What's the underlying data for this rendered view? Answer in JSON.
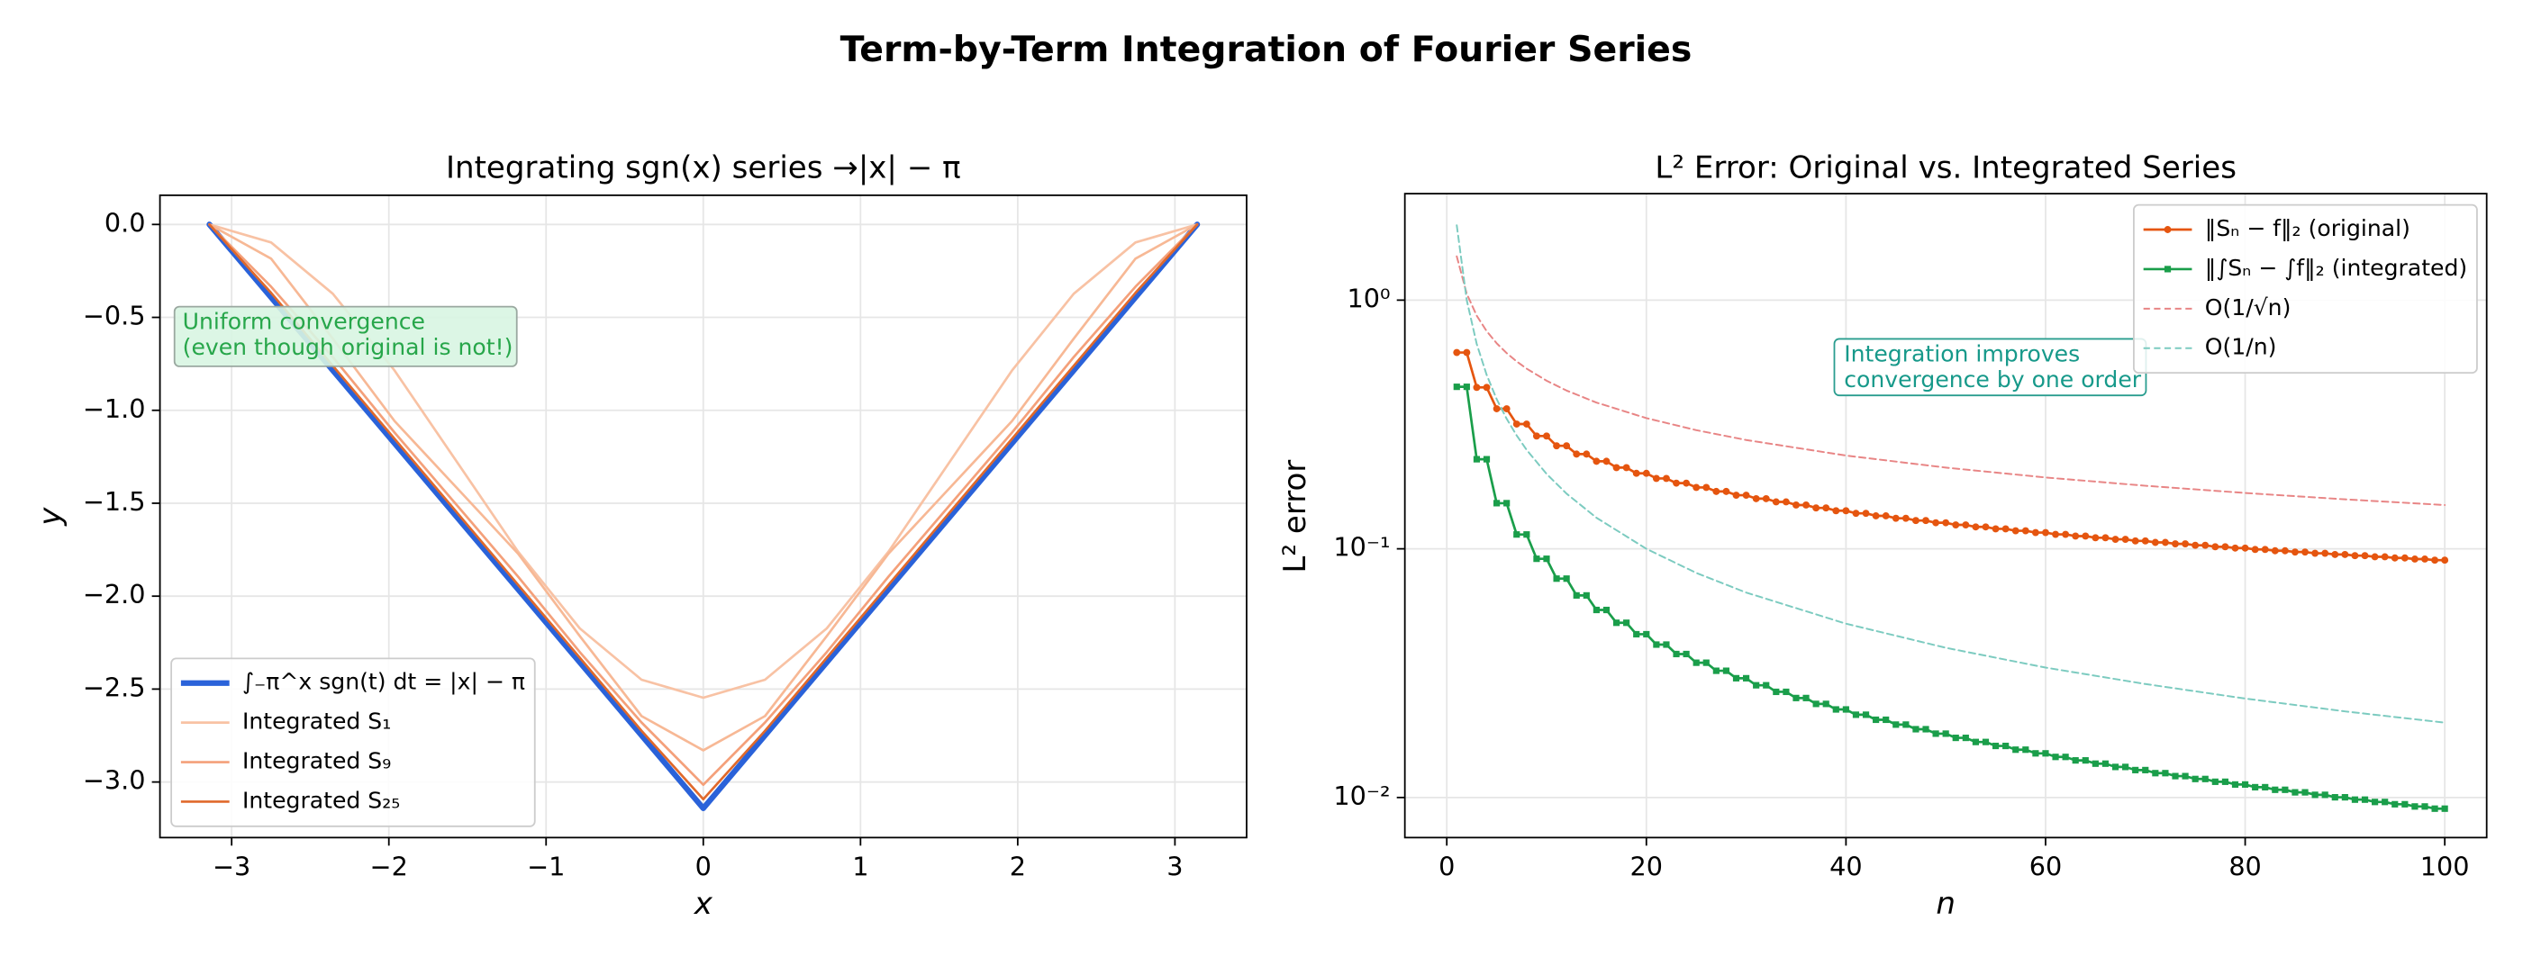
{
  "title": "Term-by-Term Integration of Fourier Series",
  "chart_data": [
    {
      "type": "line",
      "title": "Integrating sgn(x) series →|x| − π",
      "xlabel": "x",
      "ylabel": "y",
      "xlim": [
        -3.456,
        3.456
      ],
      "ylim": [
        -3.299,
        0.157
      ],
      "xticks": [
        {
          "value": -3,
          "label": "−3"
        },
        {
          "value": -2,
          "label": "−2"
        },
        {
          "value": -1,
          "label": "−1"
        },
        0,
        1,
        2,
        3
      ],
      "yticks": [
        {
          "value": 0,
          "label": "0.0"
        },
        {
          "value": -0.5,
          "label": "−0.5"
        },
        {
          "value": -1,
          "label": "−1.0"
        },
        {
          "value": -1.5,
          "label": "−1.5"
        },
        {
          "value": -2,
          "label": "−2.0"
        },
        {
          "value": -2.5,
          "label": "−2.5"
        },
        {
          "value": -3,
          "label": "−3.0"
        }
      ],
      "grid": true,
      "legend": "lower left",
      "annotation": [
        "Uniform convergence",
        "(even though original is not!)"
      ],
      "x": [
        -3.1416,
        -2.7489,
        -2.3562,
        -1.9635,
        -1.5708,
        -1.1781,
        -0.7854,
        -0.3927,
        0,
        0.3927,
        0.7854,
        1.1781,
        1.5708,
        1.9635,
        2.3562,
        2.7489,
        3.1416
      ],
      "series": [
        {
          "name": "∫₋π^x sgn(t) dt = |x| − π",
          "color": "#2a62d9",
          "linewidth": 3.5,
          "values": [
            0,
            -0.3927,
            -0.7854,
            -1.1781,
            -1.5708,
            -1.9635,
            -2.3562,
            -2.7489,
            -3.1416,
            -2.7489,
            -2.3562,
            -1.9635,
            -1.5708,
            -1.1781,
            -0.7854,
            -0.3927,
            0
          ]
        },
        {
          "name": "Integrated S₁",
          "color": "#f8c2a4",
          "linewidth": 1.5,
          "values": [
            0,
            -0.0969,
            -0.3729,
            -0.786,
            -1.2732,
            -1.7605,
            -2.1735,
            -2.4495,
            -2.5465,
            -2.4495,
            -2.1735,
            -1.7605,
            -1.2732,
            -0.786,
            -0.3729,
            -0.0969,
            0
          ]
        },
        {
          "color": "#f7b895",
          "linewidth": 1.5,
          "values": [
            0,
            -0.1842,
            -0.6144,
            -1.0582,
            -1.4147,
            -1.7713,
            -2.2149,
            -2.6451,
            -2.8294,
            -2.6451,
            -2.2149,
            -1.7713,
            -1.4147,
            -1.0582,
            -0.6144,
            -0.1842,
            0
          ]
        },
        {
          "name": "Integrated S₉",
          "color": "#f4a07a",
          "linewidth": 1.5,
          "values": [
            0,
            -0.3349,
            -0.7136,
            -1.1198,
            -1.5073,
            -1.895,
            -2.301,
            -2.6797,
            -3.0147,
            -2.6797,
            -2.301,
            -1.895,
            -1.5073,
            -1.1198,
            -0.7136,
            -0.3349,
            0
          ]
        },
        {
          "name": "Integrated S₂₅",
          "color": "#e0692b",
          "linewidth": 1.5,
          "values": [
            0,
            -0.3682,
            -0.7609,
            -1.1536,
            -1.5463,
            -1.939,
            -2.3317,
            -2.7244,
            -3.0926,
            -2.7244,
            -2.3317,
            -1.939,
            -1.5463,
            -1.1536,
            -0.7609,
            -0.3682,
            0
          ]
        }
      ]
    },
    {
      "type": "line",
      "title": "L² Error: Original vs. Integrated Series",
      "xlabel": "n",
      "ylabel": "L² error",
      "log_y": true,
      "xlim": [
        -4.2,
        104.2
      ],
      "ylim": [
        0.0069,
        2.68
      ],
      "xticks": [
        0,
        20,
        40,
        60,
        80,
        100
      ],
      "yticks": [
        {
          "value": 0.01,
          "label": "10⁻²"
        },
        {
          "value": 0.1,
          "label": "10⁻¹"
        },
        {
          "value": 1,
          "label": "10⁰"
        }
      ],
      "grid": true,
      "legend": "upper right",
      "annotation": [
        "Integration improves",
        "convergence by one order"
      ],
      "series": [
        {
          "name": "‖Sₙ − f‖₂ (original)",
          "color": "#e5550f",
          "linewidth": 1.5,
          "marker": "circle",
          "x": [
            1,
            2,
            3,
            4,
            5,
            6,
            7,
            8,
            9,
            10,
            11,
            12,
            13,
            14,
            15,
            16,
            17,
            18,
            19,
            20,
            21,
            22,
            23,
            24,
            25,
            26,
            27,
            28,
            29,
            30,
            31,
            32,
            33,
            34,
            35,
            36,
            37,
            38,
            39,
            40,
            41,
            42,
            43,
            44,
            45,
            46,
            47,
            48,
            49,
            50,
            51,
            52,
            53,
            54,
            55,
            56,
            57,
            58,
            59,
            60,
            61,
            62,
            63,
            64,
            65,
            66,
            67,
            68,
            69,
            70,
            71,
            72,
            73,
            74,
            75,
            76,
            77,
            78,
            79,
            80,
            81,
            82,
            83,
            84,
            85,
            86,
            87,
            88,
            89,
            90,
            91,
            92,
            93,
            94,
            95,
            96,
            97,
            98,
            99,
            100
          ],
          "values": [
            0.6155,
            0.6155,
            0.4458,
            0.4458,
            0.3658,
            0.3658,
            0.3175,
            0.3175,
            0.2842,
            0.2842,
            0.2596,
            0.2596,
            0.2404,
            0.2404,
            0.2249,
            0.2249,
            0.2121,
            0.2121,
            0.2012,
            0.2012,
            0.1919,
            0.1919,
            0.1837,
            0.1837,
            0.1765,
            0.1765,
            0.1701,
            0.1701,
            0.1643,
            0.1643,
            0.1591,
            0.1591,
            0.1544,
            0.1544,
            0.15,
            0.15,
            0.146,
            0.146,
            0.1423,
            0.1423,
            0.1389,
            0.1389,
            0.1357,
            0.1357,
            0.1327,
            0.1327,
            0.1299,
            0.1299,
            0.1273,
            0.1273,
            0.1248,
            0.1248,
            0.1225,
            0.1225,
            0.1203,
            0.1203,
            0.1182,
            0.1182,
            0.1162,
            0.1162,
            0.1143,
            0.1143,
            0.1125,
            0.1125,
            0.1108,
            0.1108,
            0.1092,
            0.1092,
            0.1076,
            0.1076,
            0.1061,
            0.1061,
            0.1047,
            0.1047,
            0.1033,
            0.1033,
            0.1019,
            0.1019,
            0.1007,
            0.1007,
            0.09942,
            0.09942,
            0.09823,
            0.09823,
            0.09708,
            0.09708,
            0.09597,
            0.09597,
            0.0949,
            0.0949,
            0.09386,
            0.09386,
            0.09286,
            0.09286,
            0.09189,
            0.09189,
            0.09095,
            0.09095,
            0.09003,
            0.09003
          ]
        },
        {
          "name": "‖∫Sₙ − ∫f‖₂ (integrated)",
          "color": "#1a9e4a",
          "linewidth": 1.5,
          "marker": "square",
          "x": [
            1,
            2,
            3,
            4,
            5,
            6,
            7,
            8,
            9,
            10,
            11,
            12,
            13,
            14,
            15,
            16,
            17,
            18,
            19,
            20,
            21,
            22,
            23,
            24,
            25,
            26,
            27,
            28,
            29,
            30,
            31,
            32,
            33,
            34,
            35,
            36,
            37,
            38,
            39,
            40,
            41,
            42,
            43,
            44,
            45,
            46,
            47,
            48,
            49,
            50,
            51,
            52,
            53,
            54,
            55,
            56,
            57,
            58,
            59,
            60,
            61,
            62,
            63,
            64,
            65,
            66,
            67,
            68,
            69,
            70,
            71,
            72,
            73,
            74,
            75,
            76,
            77,
            78,
            79,
            80,
            81,
            82,
            83,
            84,
            85,
            86,
            87,
            88,
            89,
            90,
            91,
            92,
            93,
            94,
            95,
            96,
            97,
            98,
            99,
            100
          ],
          "values": [
            0.4482,
            0.4482,
            0.2292,
            0.2292,
            0.1526,
            0.1526,
            0.1142,
            0.1142,
            0.09119,
            0.09119,
            0.07588,
            0.07588,
            0.06495,
            0.06495,
            0.05677,
            0.05677,
            0.05042,
            0.05042,
            0.04535,
            0.04535,
            0.0412,
            0.0412,
            0.03775,
            0.03775,
            0.03483,
            0.03483,
            0.03233,
            0.03233,
            0.03017,
            0.03017,
            0.02827,
            0.02827,
            0.0266,
            0.0266,
            0.02512,
            0.02512,
            0.02379,
            0.02379,
            0.0226,
            0.0226,
            0.02152,
            0.02152,
            0.02054,
            0.02054,
            0.01964,
            0.01964,
            0.01882,
            0.01882,
            0.01806,
            0.01806,
            0.01737,
            0.01737,
            0.01672,
            0.01672,
            0.01612,
            0.01612,
            0.01557,
            0.01557,
            0.01505,
            0.01505,
            0.01456,
            0.01456,
            0.0141,
            0.0141,
            0.01368,
            0.01368,
            0.01327,
            0.01327,
            0.01289,
            0.01289,
            0.01253,
            0.01253,
            0.01219,
            0.01219,
            0.01187,
            0.01187,
            0.01157,
            0.01157,
            0.01128,
            0.01128,
            0.011,
            0.011,
            0.01074,
            0.01074,
            0.01049,
            0.01049,
            0.01025,
            0.01025,
            0.01002,
            0.01002,
            0.009804,
            0.009804,
            0.009595,
            0.009595,
            0.009394,
            0.009394,
            0.009203,
            0.009203,
            0.009018,
            0.009018
          ]
        },
        {
          "name": "O(1/√n)",
          "color": "#e88585",
          "linewidth": 1.1,
          "dash": true,
          "x": [
            1,
            2,
            3,
            4,
            5,
            6,
            7,
            8,
            10,
            12,
            15,
            20,
            25,
            30,
            40,
            50,
            60,
            70,
            80,
            90,
            100
          ],
          "values": [
            1.5,
            1.0607,
            0.866,
            0.75,
            0.6708,
            0.6124,
            0.5669,
            0.5303,
            0.4743,
            0.433,
            0.3873,
            0.3354,
            0.3,
            0.2739,
            0.2372,
            0.2121,
            0.1936,
            0.1793,
            0.1677,
            0.1581,
            0.15
          ]
        },
        {
          "name": "O(1/n)",
          "color": "#7ccbc0",
          "linewidth": 1.1,
          "dash": true,
          "x": [
            1,
            2,
            3,
            4,
            5,
            6,
            7,
            8,
            10,
            12,
            15,
            20,
            25,
            30,
            40,
            50,
            60,
            70,
            80,
            90,
            100
          ],
          "values": [
            2,
            1,
            0.6667,
            0.5,
            0.4,
            0.3333,
            0.2857,
            0.25,
            0.2,
            0.1667,
            0.1333,
            0.1,
            0.08,
            0.0667,
            0.05,
            0.04,
            0.0333,
            0.0286,
            0.025,
            0.0222,
            0.02
          ]
        }
      ]
    }
  ]
}
